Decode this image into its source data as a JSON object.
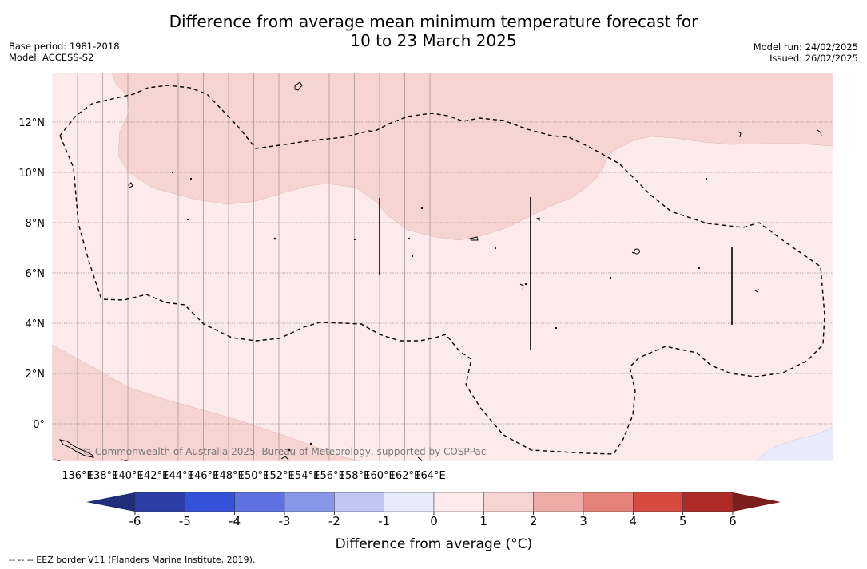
{
  "title": {
    "line1": "Difference from average mean minimum temperature forecast for",
    "line2": "10 to 23 March 2025"
  },
  "meta_left": {
    "base_period": "Base period: 1981-2018",
    "model": "Model: ACCESS-S2"
  },
  "meta_right": {
    "model_run": "Model run: 24/02/2025",
    "issued": "Issued: 26/02/2025"
  },
  "map": {
    "lon_labels": [
      "136°E",
      "138°E",
      "140°E",
      "142°E",
      "144°E",
      "146°E",
      "148°E",
      "150°E",
      "152°E",
      "154°E",
      "156°E",
      "158°E",
      "160°E",
      "162°E",
      "164°E"
    ],
    "lat_labels": [
      "12°N",
      "10°N",
      "8°N",
      "6°N",
      "4°N",
      "2°N",
      "0°"
    ],
    "watermark": "© Commonwealth of Australia 2025, Bureau of Meteorology, supported by COSPPac",
    "fill_colors": {
      "anomaly_0_1": "#fcebea",
      "anomaly_1_2": "#f6d4d1",
      "anomaly_-1_0": "#e9ebfa"
    }
  },
  "colorbar": {
    "ticks": [
      "-6",
      "-5",
      "-4",
      "-3",
      "-2",
      "-1",
      "0",
      "1",
      "2",
      "3",
      "4",
      "5",
      "6"
    ],
    "colors": [
      "#2c3ea6",
      "#3452d8",
      "#5f73e0",
      "#8797e8",
      "#c0c7f3",
      "#e9ebfa",
      "#fcebea",
      "#f6d4d1",
      "#eeaca6",
      "#e58279",
      "#d74a40",
      "#ad2b26"
    ],
    "extend_low_color": "#1f2d7a",
    "extend_high_color": "#7a1f1c",
    "label": "Difference from average (°C)"
  },
  "footnote": "--  --  -- EEZ border V11 (Flanders Marine Institute, 2019)."
}
